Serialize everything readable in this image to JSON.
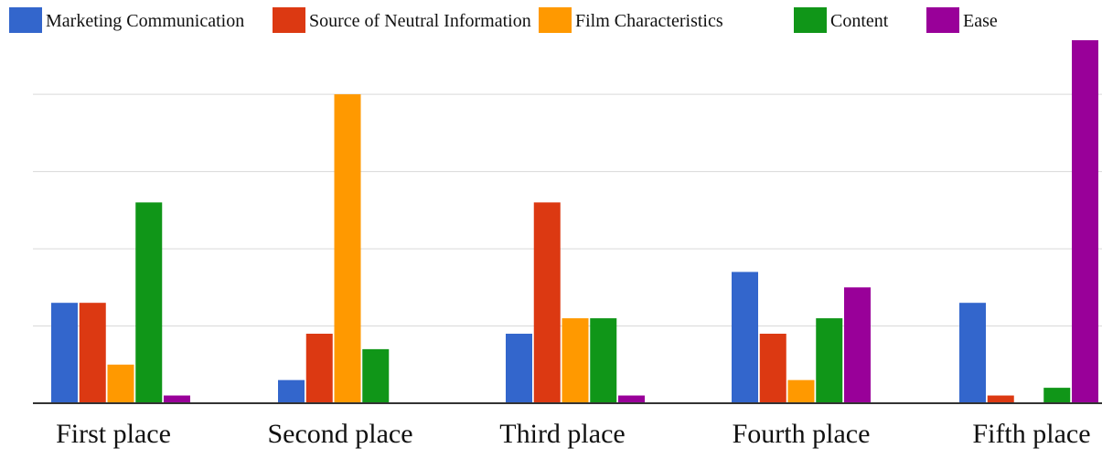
{
  "chart_data": {
    "type": "bar",
    "categories": [
      "First place",
      "Second place",
      "Third place",
      "Fourth place",
      "Fifth place"
    ],
    "series": [
      {
        "name": "Marketing Communication",
        "values": [
          6.5,
          1.5,
          4.5,
          8.5,
          6.5
        ]
      },
      {
        "name": "Source of Neutral Information",
        "values": [
          6.5,
          4.5,
          13.0,
          4.5,
          0.5
        ]
      },
      {
        "name": "Film Characteristics",
        "values": [
          2.5,
          20.0,
          5.5,
          1.5,
          0.0
        ]
      },
      {
        "name": "Content",
        "values": [
          13.0,
          3.5,
          5.5,
          5.5,
          1.0
        ]
      },
      {
        "name": "Ease",
        "values": [
          0.5,
          0.0,
          0.5,
          7.5,
          23.5
        ]
      }
    ],
    "colors": [
      "#3366CC",
      "#DC3912",
      "#FF9900",
      "#109618",
      "#990099"
    ],
    "ylim": [
      0,
      23.5
    ],
    "grid_values": [
      0,
      5,
      10,
      15,
      20
    ],
    "y_tick_labels_shown": false,
    "grid": true,
    "legend_position": "top",
    "title": "",
    "xlabel": "",
    "ylabel": ""
  }
}
